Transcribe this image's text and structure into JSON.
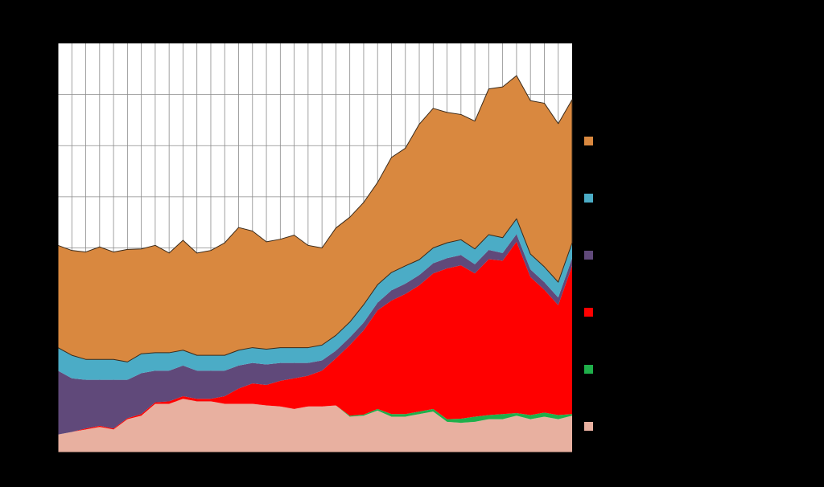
{
  "chart_data": {
    "type": "area",
    "stacked": true,
    "title": "",
    "xlabel": "",
    "ylabel": "",
    "ylim": [
      0,
      8
    ],
    "grid": true,
    "legend_position": "right",
    "series": [
      {
        "name": "",
        "color": "#E8B0A0",
        "values": [
          0.35,
          0.4,
          0.45,
          0.5,
          0.45,
          0.65,
          0.72,
          0.95,
          0.95,
          1.05,
          1.0,
          1.0,
          0.95,
          0.95,
          0.95,
          0.92,
          0.9,
          0.85,
          0.9,
          0.9,
          0.92,
          0.7,
          0.72,
          0.82,
          0.7,
          0.7,
          0.75,
          0.8,
          0.6,
          0.58,
          0.6,
          0.65,
          0.65,
          0.72,
          0.65,
          0.7,
          0.65,
          0.72
        ]
      },
      {
        "name": "",
        "color": "#1FAF4A",
        "values": [
          0.0,
          0.0,
          0.0,
          0.0,
          0.0,
          0.0,
          0.0,
          0.0,
          0.0,
          0.0,
          0.0,
          0.0,
          0.0,
          0.0,
          0.0,
          0.0,
          0.0,
          0.0,
          0.0,
          0.0,
          0.0,
          0.02,
          0.02,
          0.03,
          0.05,
          0.05,
          0.05,
          0.05,
          0.05,
          0.08,
          0.1,
          0.08,
          0.1,
          0.05,
          0.08,
          0.08,
          0.08,
          0.03
        ]
      },
      {
        "name": "",
        "color": "#FF0000",
        "values": [
          0.0,
          0.0,
          0.02,
          0.02,
          0.02,
          0.02,
          0.03,
          0.03,
          0.05,
          0.05,
          0.05,
          0.05,
          0.15,
          0.3,
          0.4,
          0.4,
          0.5,
          0.6,
          0.6,
          0.7,
          0.92,
          1.38,
          1.65,
          1.93,
          2.22,
          2.35,
          2.47,
          2.65,
          2.95,
          3.0,
          2.8,
          3.05,
          3.0,
          3.35,
          2.7,
          2.4,
          2.15,
          2.9
        ]
      },
      {
        "name": "",
        "color": "#60497A",
        "values": [
          1.25,
          1.05,
          0.95,
          0.9,
          0.95,
          0.75,
          0.8,
          0.62,
          0.6,
          0.6,
          0.55,
          0.55,
          0.5,
          0.45,
          0.4,
          0.4,
          0.35,
          0.3,
          0.25,
          0.2,
          0.15,
          0.15,
          0.15,
          0.15,
          0.2,
          0.2,
          0.2,
          0.2,
          0.2,
          0.2,
          0.18,
          0.18,
          0.15,
          0.15,
          0.15,
          0.15,
          0.15,
          0.15
        ]
      },
      {
        "name": "",
        "color": "#4BACC6",
        "values": [
          0.45,
          0.45,
          0.4,
          0.4,
          0.4,
          0.35,
          0.38,
          0.35,
          0.35,
          0.3,
          0.3,
          0.3,
          0.3,
          0.3,
          0.3,
          0.3,
          0.3,
          0.3,
          0.3,
          0.3,
          0.3,
          0.3,
          0.35,
          0.35,
          0.35,
          0.35,
          0.3,
          0.3,
          0.3,
          0.3,
          0.3,
          0.3,
          0.3,
          0.3,
          0.3,
          0.3,
          0.3,
          0.3
        ]
      },
      {
        "name": "",
        "color": "#D9883F",
        "values": [
          2.0,
          2.05,
          2.1,
          2.2,
          2.1,
          2.2,
          2.05,
          2.1,
          1.95,
          2.15,
          2.0,
          2.05,
          2.2,
          2.4,
          2.28,
          2.1,
          2.12,
          2.2,
          2.0,
          1.9,
          2.1,
          2.05,
          2.0,
          2.0,
          2.25,
          2.3,
          2.65,
          2.73,
          2.55,
          2.45,
          2.5,
          2.85,
          2.95,
          2.8,
          3.0,
          3.2,
          3.1,
          2.8
        ]
      }
    ]
  }
}
